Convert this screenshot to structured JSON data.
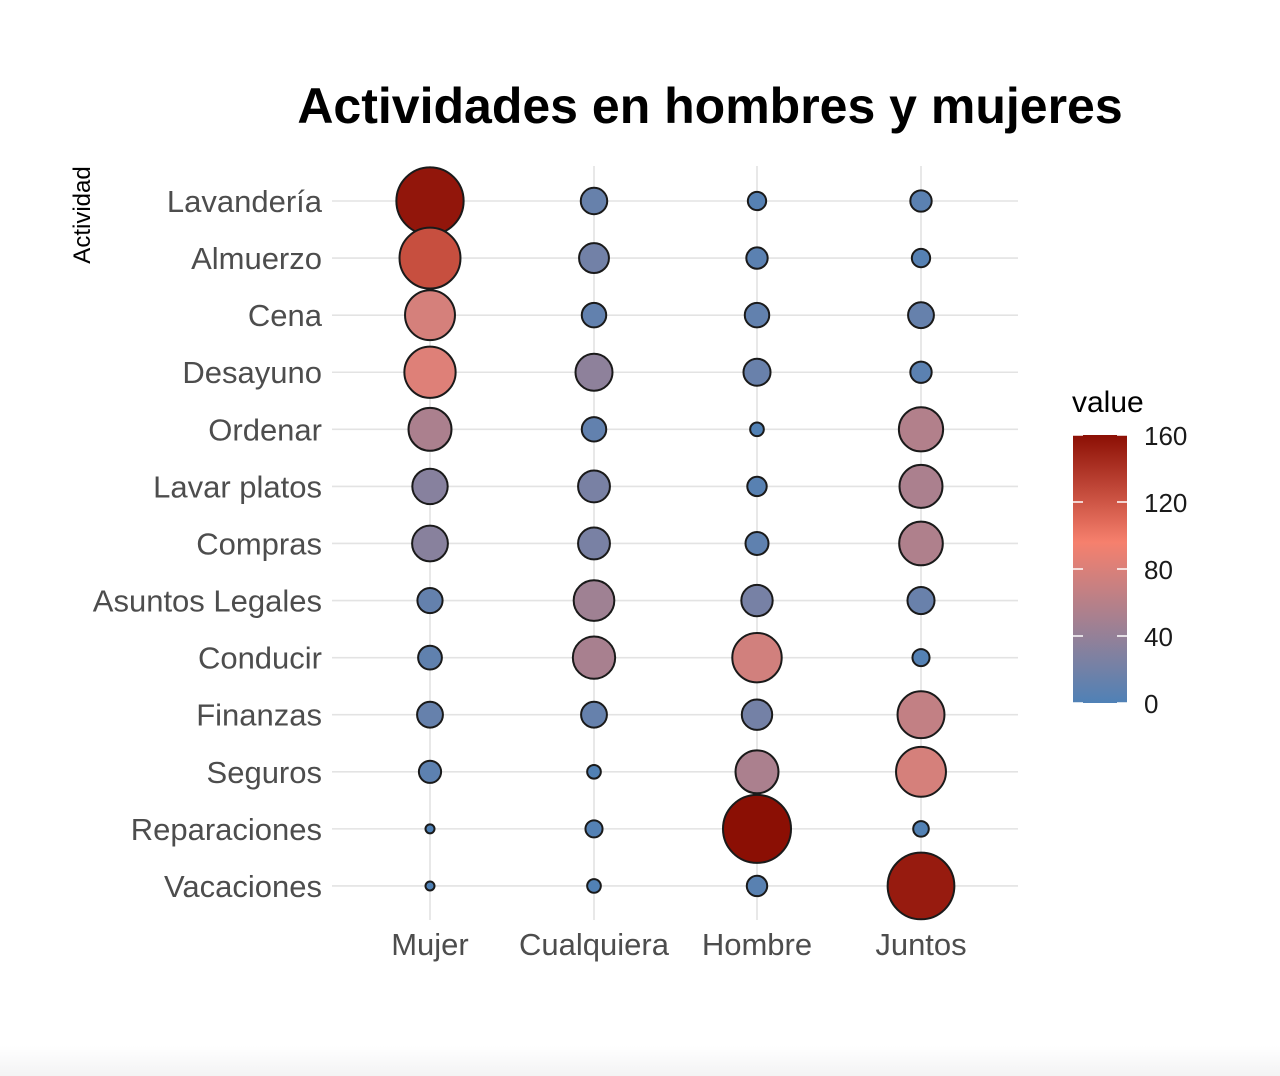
{
  "chart_data": {
    "type": "scatter",
    "title": "Actividades en hombres y mujeres",
    "ylabel": "Actividad",
    "xlabel": "",
    "x_categories": [
      "Mujer",
      "Cualquiera",
      "Hombre",
      "Juntos"
    ],
    "y_categories": [
      "Lavandería",
      "Almuerzo",
      "Cena",
      "Desayuno",
      "Ordenar",
      "Lavar platos",
      "Compras",
      "Asuntos Legales",
      "Conducir",
      "Finanzas",
      "Seguros",
      "Reparaciones",
      "Vacaciones"
    ],
    "values": [
      [
        156,
        14,
        4,
        7
      ],
      [
        124,
        20,
        7,
        4
      ],
      [
        77,
        11,
        11,
        13
      ],
      [
        82,
        36,
        15,
        7
      ],
      [
        53,
        11,
        1,
        57
      ],
      [
        32,
        24,
        5,
        53
      ],
      [
        33,
        24,
        9,
        55
      ],
      [
        12,
        46,
        23,
        15
      ],
      [
        10,
        51,
        75,
        3
      ],
      [
        13,
        13,
        21,
        66
      ],
      [
        8,
        1,
        53,
        77
      ],
      [
        0,
        3,
        160,
        2
      ],
      [
        0,
        1,
        6,
        153
      ]
    ],
    "legend": {
      "title": "value",
      "ticks": [
        0,
        40,
        80,
        120,
        160
      ],
      "range": [
        0,
        160
      ],
      "position": "right",
      "low_color": "#4f81b6",
      "mid_color": "#f6806d",
      "high_color": "#8b0f04"
    },
    "grid": true
  }
}
